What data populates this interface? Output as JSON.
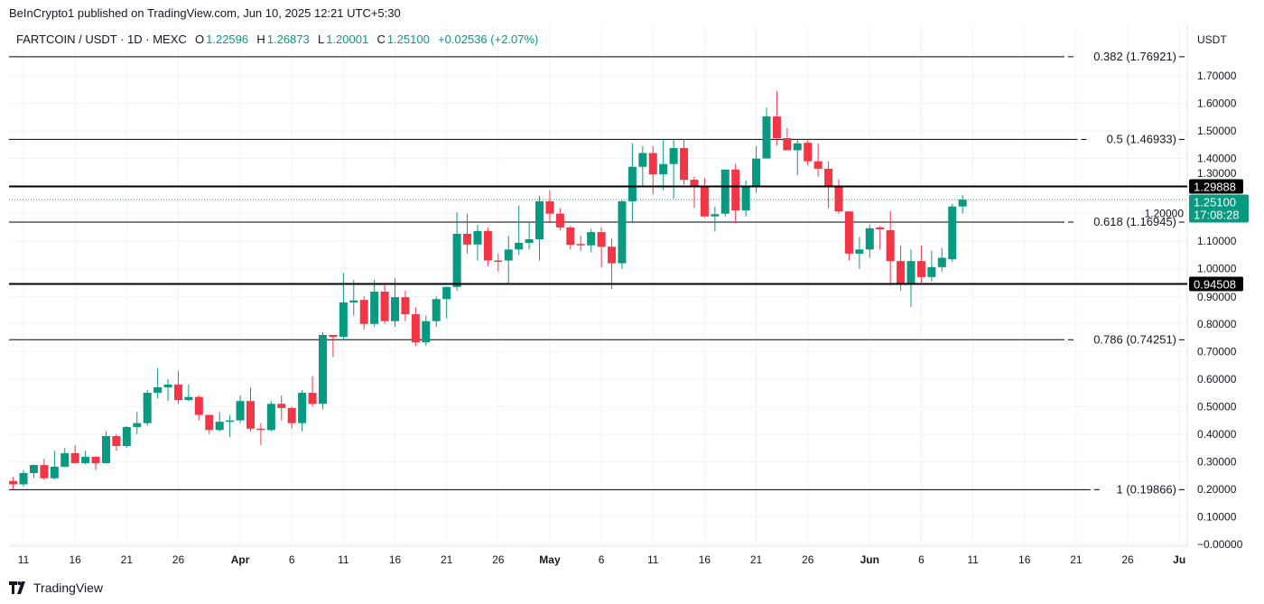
{
  "header": {
    "published": "BeInCrypto1 published on TradingView.com, Jun 10, 2025 12:21 UTC+5:30",
    "symbol": "FARTCOIN / USDT · 1D · MEXC",
    "o_label": "O",
    "o": "1.22596",
    "h_label": "H",
    "h": "1.26873",
    "l_label": "L",
    "l": "1.20001",
    "c_label": "C",
    "c": "1.25100",
    "change": "+0.02536 (+2.07%)"
  },
  "price_axis_unit": "USDT",
  "footer": {
    "brand": "TradingView"
  },
  "colors": {
    "up": "#089981",
    "down": "#f23645",
    "level": "#000000",
    "grid": "#f0f3fa"
  },
  "chart_data": {
    "type": "candlestick",
    "ylim": [
      -0.05,
      1.82
    ],
    "grid": true,
    "y_ticks": [
      {
        "v": 0,
        "label": "−0.00000"
      },
      {
        "v": 0.1,
        "label": "0.10000"
      },
      {
        "v": 0.2,
        "label": "0.20000"
      },
      {
        "v": 0.3,
        "label": "0.30000"
      },
      {
        "v": 0.4,
        "label": "0.40000"
      },
      {
        "v": 0.5,
        "label": "0.50000"
      },
      {
        "v": 0.6,
        "label": "0.60000"
      },
      {
        "v": 0.7,
        "label": "0.70000"
      },
      {
        "v": 0.8,
        "label": "0.80000"
      },
      {
        "v": 0.9,
        "label": "0.90000"
      },
      {
        "v": 1.0,
        "label": "1.00000"
      },
      {
        "v": 1.1,
        "label": "1.10000"
      },
      {
        "v": 1.2,
        "label": "1.20000"
      },
      {
        "v": 1.3,
        "label": "1.30000"
      },
      {
        "v": 1.4,
        "label": "1.40000"
      },
      {
        "v": 1.5,
        "label": "1.50000"
      },
      {
        "v": 1.6,
        "label": "1.60000"
      },
      {
        "v": 1.7,
        "label": "1.70000"
      }
    ],
    "x_ticks": [
      {
        "date": "2025-03-11",
        "label": "11"
      },
      {
        "date": "2025-03-16",
        "label": "16"
      },
      {
        "date": "2025-03-21",
        "label": "21"
      },
      {
        "date": "2025-03-26",
        "label": "26"
      },
      {
        "date": "2025-04-01",
        "label": "Apr"
      },
      {
        "date": "2025-04-06",
        "label": "6"
      },
      {
        "date": "2025-04-11",
        "label": "11"
      },
      {
        "date": "2025-04-16",
        "label": "16"
      },
      {
        "date": "2025-04-21",
        "label": "21"
      },
      {
        "date": "2025-04-26",
        "label": "26"
      },
      {
        "date": "2025-05-01",
        "label": "May"
      },
      {
        "date": "2025-05-06",
        "label": "6"
      },
      {
        "date": "2025-05-11",
        "label": "11"
      },
      {
        "date": "2025-05-16",
        "label": "16"
      },
      {
        "date": "2025-05-21",
        "label": "21"
      },
      {
        "date": "2025-05-26",
        "label": "26"
      },
      {
        "date": "2025-06-01",
        "label": "Jun"
      },
      {
        "date": "2025-06-06",
        "label": "6"
      },
      {
        "date": "2025-06-11",
        "label": "11"
      },
      {
        "date": "2025-06-16",
        "label": "16"
      },
      {
        "date": "2025-06-21",
        "label": "21"
      },
      {
        "date": "2025-06-26",
        "label": "26"
      },
      {
        "date": "2025-07-01",
        "label": "Ju"
      }
    ],
    "fib_levels": [
      {
        "ratio": "0.382",
        "price": 1.76921,
        "label": "0.382 (1.76921)"
      },
      {
        "ratio": "0.5",
        "price": 1.46933,
        "label": "0.5 (1.46933)"
      },
      {
        "ratio": "0.618",
        "price": 1.16945,
        "label": "0.618 (1.16945)"
      },
      {
        "ratio": "0.786",
        "price": 0.74251,
        "label": "0.786 (0.74251)"
      },
      {
        "ratio": "1",
        "price": 0.19866,
        "label": "1 (0.19866)"
      }
    ],
    "key_levels": [
      {
        "price": 1.29888,
        "label": "1.29888"
      },
      {
        "price": 0.94508,
        "label": "0.94508"
      }
    ],
    "last_price": {
      "price": 1.251,
      "label": "1.25100",
      "countdown": "17:08:28"
    },
    "candles": [
      [
        "2025-03-10",
        0.23,
        0.245,
        0.2,
        0.218
      ],
      [
        "2025-03-11",
        0.218,
        0.27,
        0.21,
        0.259
      ],
      [
        "2025-03-12",
        0.259,
        0.29,
        0.24,
        0.288
      ],
      [
        "2025-03-13",
        0.288,
        0.31,
        0.235,
        0.24
      ],
      [
        "2025-03-14",
        0.24,
        0.34,
        0.235,
        0.282
      ],
      [
        "2025-03-15",
        0.282,
        0.35,
        0.28,
        0.331
      ],
      [
        "2025-03-16",
        0.331,
        0.36,
        0.295,
        0.295
      ],
      [
        "2025-03-17",
        0.295,
        0.34,
        0.29,
        0.318
      ],
      [
        "2025-03-18",
        0.318,
        0.32,
        0.27,
        0.295
      ],
      [
        "2025-03-19",
        0.295,
        0.41,
        0.295,
        0.393
      ],
      [
        "2025-03-20",
        0.393,
        0.4,
        0.34,
        0.357
      ],
      [
        "2025-03-21",
        0.357,
        0.43,
        0.35,
        0.426
      ],
      [
        "2025-03-22",
        0.426,
        0.48,
        0.4,
        0.44
      ],
      [
        "2025-03-23",
        0.44,
        0.56,
        0.43,
        0.55
      ],
      [
        "2025-03-24",
        0.55,
        0.64,
        0.53,
        0.57
      ],
      [
        "2025-03-25",
        0.57,
        0.6,
        0.52,
        0.58
      ],
      [
        "2025-03-26",
        0.58,
        0.63,
        0.51,
        0.524
      ],
      [
        "2025-03-27",
        0.524,
        0.58,
        0.52,
        0.535
      ],
      [
        "2025-03-28",
        0.535,
        0.54,
        0.45,
        0.47
      ],
      [
        "2025-03-29",
        0.47,
        0.47,
        0.4,
        0.415
      ],
      [
        "2025-03-30",
        0.415,
        0.48,
        0.41,
        0.445
      ],
      [
        "2025-03-31",
        0.445,
        0.47,
        0.39,
        0.45
      ],
      [
        "2025-04-01",
        0.45,
        0.54,
        0.44,
        0.52
      ],
      [
        "2025-04-02",
        0.52,
        0.57,
        0.41,
        0.42
      ],
      [
        "2025-04-03",
        0.42,
        0.44,
        0.36,
        0.415
      ],
      [
        "2025-04-04",
        0.415,
        0.52,
        0.41,
        0.51
      ],
      [
        "2025-04-05",
        0.51,
        0.54,
        0.45,
        0.495
      ],
      [
        "2025-04-06",
        0.495,
        0.5,
        0.42,
        0.44
      ],
      [
        "2025-04-07",
        0.44,
        0.56,
        0.41,
        0.55
      ],
      [
        "2025-04-08",
        0.55,
        0.61,
        0.5,
        0.51
      ],
      [
        "2025-04-09",
        0.51,
        0.77,
        0.49,
        0.76
      ],
      [
        "2025-04-10",
        0.76,
        0.76,
        0.68,
        0.753
      ],
      [
        "2025-04-11",
        0.753,
        0.985,
        0.74,
        0.878
      ],
      [
        "2025-04-12",
        0.878,
        0.96,
        0.83,
        0.885
      ],
      [
        "2025-04-13",
        0.887,
        0.9,
        0.78,
        0.8
      ],
      [
        "2025-04-14",
        0.8,
        0.96,
        0.79,
        0.917
      ],
      [
        "2025-04-15",
        0.917,
        0.94,
        0.8,
        0.81
      ],
      [
        "2025-04-16",
        0.81,
        0.966,
        0.79,
        0.897
      ],
      [
        "2025-04-17",
        0.897,
        0.92,
        0.81,
        0.835
      ],
      [
        "2025-04-18",
        0.835,
        0.86,
        0.72,
        0.733
      ],
      [
        "2025-04-19",
        0.733,
        0.83,
        0.72,
        0.81
      ],
      [
        "2025-04-20",
        0.81,
        0.9,
        0.79,
        0.89
      ],
      [
        "2025-04-21",
        0.89,
        0.935,
        0.82,
        0.934
      ],
      [
        "2025-04-22",
        0.934,
        1.205,
        0.92,
        1.127
      ],
      [
        "2025-04-23",
        1.127,
        1.2,
        1.055,
        1.088
      ],
      [
        "2025-04-24",
        1.088,
        1.16,
        1.03,
        1.137
      ],
      [
        "2025-04-25",
        1.137,
        1.15,
        1.01,
        1.03
      ],
      [
        "2025-04-26",
        1.03,
        1.055,
        0.99,
        1.028
      ],
      [
        "2025-04-27",
        1.03,
        1.12,
        0.945,
        1.07
      ],
      [
        "2025-04-28",
        1.07,
        1.23,
        1.05,
        1.094
      ],
      [
        "2025-04-29",
        1.094,
        1.17,
        1.07,
        1.107
      ],
      [
        "2025-04-30",
        1.107,
        1.265,
        1.03,
        1.245
      ],
      [
        "2025-05-01",
        1.245,
        1.285,
        1.17,
        1.2
      ],
      [
        "2025-05-02",
        1.2,
        1.22,
        1.14,
        1.15
      ],
      [
        "2025-05-03",
        1.15,
        1.155,
        1.07,
        1.087
      ],
      [
        "2025-05-04",
        1.09,
        1.12,
        1.065,
        1.085
      ],
      [
        "2025-05-05",
        1.085,
        1.145,
        1.06,
        1.133
      ],
      [
        "2025-05-06",
        1.133,
        1.15,
        1.005,
        1.08
      ],
      [
        "2025-05-07",
        1.08,
        1.11,
        0.927,
        1.02
      ],
      [
        "2025-05-08",
        1.02,
        1.25,
        1.0,
        1.245
      ],
      [
        "2025-05-09",
        1.245,
        1.455,
        1.17,
        1.37
      ],
      [
        "2025-05-10",
        1.37,
        1.445,
        1.3,
        1.42
      ],
      [
        "2025-05-11",
        1.42,
        1.445,
        1.27,
        1.343
      ],
      [
        "2025-05-12",
        1.343,
        1.47,
        1.285,
        1.38
      ],
      [
        "2025-05-13",
        1.38,
        1.47,
        1.255,
        1.438
      ],
      [
        "2025-05-14",
        1.438,
        1.47,
        1.305,
        1.323
      ],
      [
        "2025-05-15",
        1.323,
        1.335,
        1.22,
        1.3
      ],
      [
        "2025-05-16",
        1.3,
        1.33,
        1.185,
        1.19
      ],
      [
        "2025-05-17",
        1.19,
        1.225,
        1.135,
        1.198
      ],
      [
        "2025-05-18",
        1.2,
        1.36,
        1.19,
        1.36
      ],
      [
        "2025-05-19",
        1.36,
        1.38,
        1.165,
        1.212
      ],
      [
        "2025-05-20",
        1.212,
        1.32,
        1.19,
        1.3
      ],
      [
        "2025-05-21",
        1.3,
        1.445,
        1.275,
        1.4
      ],
      [
        "2025-05-22",
        1.4,
        1.585,
        1.4,
        1.553
      ],
      [
        "2025-05-23",
        1.553,
        1.645,
        1.447,
        1.474
      ],
      [
        "2025-05-24",
        1.474,
        1.51,
        1.43,
        1.43
      ],
      [
        "2025-05-25",
        1.43,
        1.47,
        1.34,
        1.455
      ],
      [
        "2025-05-26",
        1.457,
        1.47,
        1.375,
        1.39
      ],
      [
        "2025-05-27",
        1.39,
        1.455,
        1.335,
        1.363
      ],
      [
        "2025-05-28",
        1.363,
        1.39,
        1.22,
        1.3
      ],
      [
        "2025-05-29",
        1.3,
        1.325,
        1.2,
        1.208
      ],
      [
        "2025-05-30",
        1.208,
        1.21,
        1.03,
        1.055
      ],
      [
        "2025-05-31",
        1.055,
        1.115,
        1.0,
        1.07
      ],
      [
        "2025-06-01",
        1.07,
        1.16,
        1.04,
        1.147
      ],
      [
        "2025-06-02",
        1.15,
        1.155,
        1.07,
        1.143
      ],
      [
        "2025-06-03",
        1.14,
        1.21,
        0.94,
        1.028
      ],
      [
        "2025-06-04",
        1.028,
        1.085,
        0.92,
        0.945
      ],
      [
        "2025-06-05",
        0.945,
        1.07,
        0.862,
        1.028
      ],
      [
        "2025-06-06",
        1.028,
        1.085,
        0.95,
        0.97
      ],
      [
        "2025-06-07",
        0.97,
        1.065,
        0.955,
        1.006
      ],
      [
        "2025-06-08",
        1.006,
        1.075,
        0.99,
        1.04
      ],
      [
        "2025-06-09",
        1.035,
        1.235,
        1.025,
        1.226
      ],
      [
        "2025-06-10",
        1.22596,
        1.26873,
        1.20001,
        1.251
      ]
    ]
  }
}
